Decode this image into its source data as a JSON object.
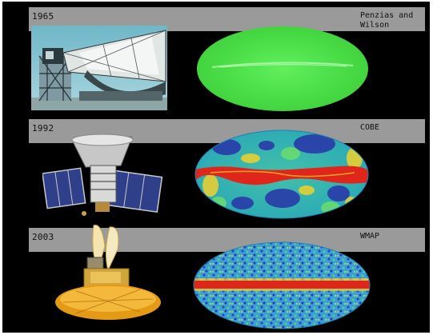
{
  "rows": [
    {
      "year": "1965",
      "mission": "Penzias and Wilson"
    },
    {
      "year": "1992",
      "mission": "COBE"
    },
    {
      "year": "2003",
      "mission": "WMAP"
    }
  ],
  "colors": {
    "background": "#000000",
    "band": "#9a9a9a",
    "penzias_map": "#3fdc3c",
    "galactic_plane": "#e0261a",
    "cobe_blue": "#2a3aa8",
    "wmap_base": "#3aa0d8"
  },
  "icons": [
    "horn-antenna-photo",
    "cobe-satellite",
    "wmap-satellite"
  ]
}
